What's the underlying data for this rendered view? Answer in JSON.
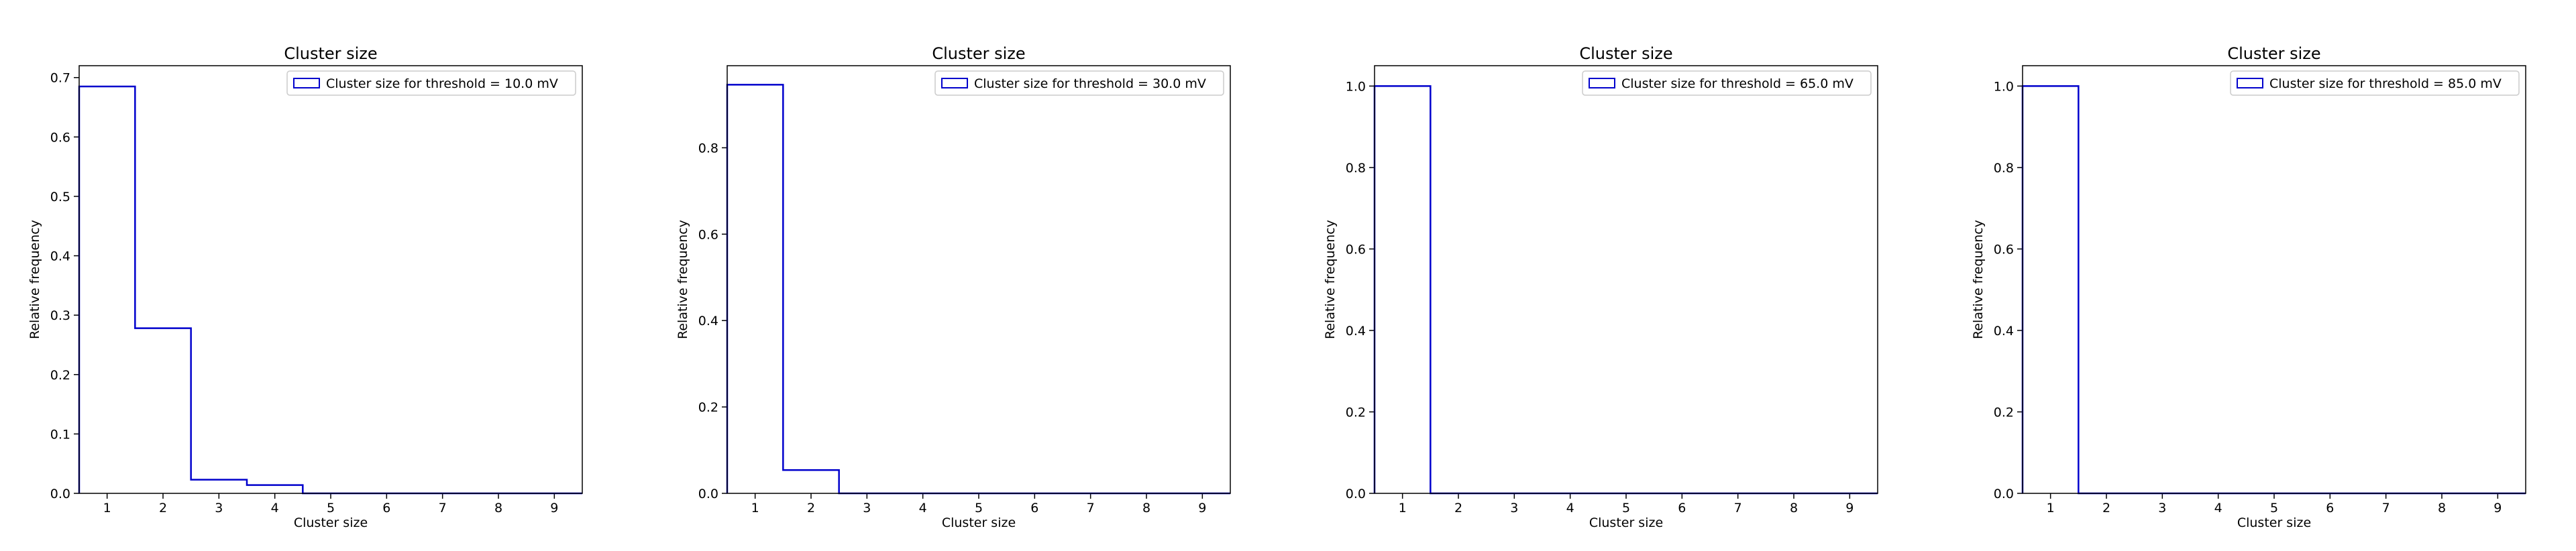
{
  "chart_data": [
    {
      "type": "histogram-step",
      "title": "Cluster size",
      "xlabel": "Cluster size",
      "ylabel": "Relative frequency",
      "xlim": [
        0.5,
        9.5
      ],
      "ylim": [
        0,
        0.72
      ],
      "xticks": [
        1,
        2,
        3,
        4,
        5,
        6,
        7,
        8,
        9
      ],
      "yticks": [
        0.0,
        0.1,
        0.2,
        0.3,
        0.4,
        0.5,
        0.6,
        0.7
      ],
      "grid": false,
      "legend_position": "upper-right",
      "series": [
        {
          "name": "Cluster size for threshold = 10.0 mV",
          "color": "#0000cc",
          "x": [
            1,
            2,
            3,
            4,
            5,
            6,
            7,
            8,
            9
          ],
          "values": [
            0.685,
            0.278,
            0.023,
            0.014,
            0.0,
            0.0,
            0.0,
            0.0,
            0.0
          ]
        }
      ]
    },
    {
      "type": "histogram-step",
      "title": "Cluster size",
      "xlabel": "Cluster size",
      "ylabel": "Relative frequency",
      "xlim": [
        0.5,
        9.5
      ],
      "ylim": [
        0,
        0.99
      ],
      "xticks": [
        1,
        2,
        3,
        4,
        5,
        6,
        7,
        8,
        9
      ],
      "yticks": [
        0.0,
        0.2,
        0.4,
        0.6,
        0.8
      ],
      "grid": false,
      "legend_position": "upper-right",
      "series": [
        {
          "name": "Cluster size for threshold = 30.0 mV",
          "color": "#0000cc",
          "x": [
            1,
            2,
            3,
            4,
            5,
            6,
            7,
            8,
            9
          ],
          "values": [
            0.946,
            0.054,
            0.0,
            0.0,
            0.0,
            0.0,
            0.0,
            0.0,
            0.0
          ]
        }
      ]
    },
    {
      "type": "histogram-step",
      "title": "Cluster size",
      "xlabel": "Cluster size",
      "ylabel": "Relative frequency",
      "xlim": [
        0.5,
        9.5
      ],
      "ylim": [
        0,
        1.05
      ],
      "xticks": [
        1,
        2,
        3,
        4,
        5,
        6,
        7,
        8,
        9
      ],
      "yticks": [
        0.0,
        0.2,
        0.4,
        0.6,
        0.8,
        1.0
      ],
      "grid": false,
      "legend_position": "upper-right",
      "series": [
        {
          "name": "Cluster size for threshold = 65.0 mV",
          "color": "#0000cc",
          "x": [
            1,
            2,
            3,
            4,
            5,
            6,
            7,
            8,
            9
          ],
          "values": [
            1.0,
            0.0,
            0.0,
            0.0,
            0.0,
            0.0,
            0.0,
            0.0,
            0.0
          ]
        }
      ]
    },
    {
      "type": "histogram-step",
      "title": "Cluster size",
      "xlabel": "Cluster size",
      "ylabel": "Relative frequency",
      "xlim": [
        0.5,
        9.5
      ],
      "ylim": [
        0,
        1.05
      ],
      "xticks": [
        1,
        2,
        3,
        4,
        5,
        6,
        7,
        8,
        9
      ],
      "yticks": [
        0.0,
        0.2,
        0.4,
        0.6,
        0.8,
        1.0
      ],
      "grid": false,
      "legend_position": "upper-right",
      "series": [
        {
          "name": "Cluster size for threshold = 85.0 mV",
          "color": "#0000cc",
          "x": [
            1,
            2,
            3,
            4,
            5,
            6,
            7,
            8,
            9
          ],
          "values": [
            1.0,
            0.0,
            0.0,
            0.0,
            0.0,
            0.0,
            0.0,
            0.0,
            0.0
          ]
        }
      ]
    }
  ]
}
